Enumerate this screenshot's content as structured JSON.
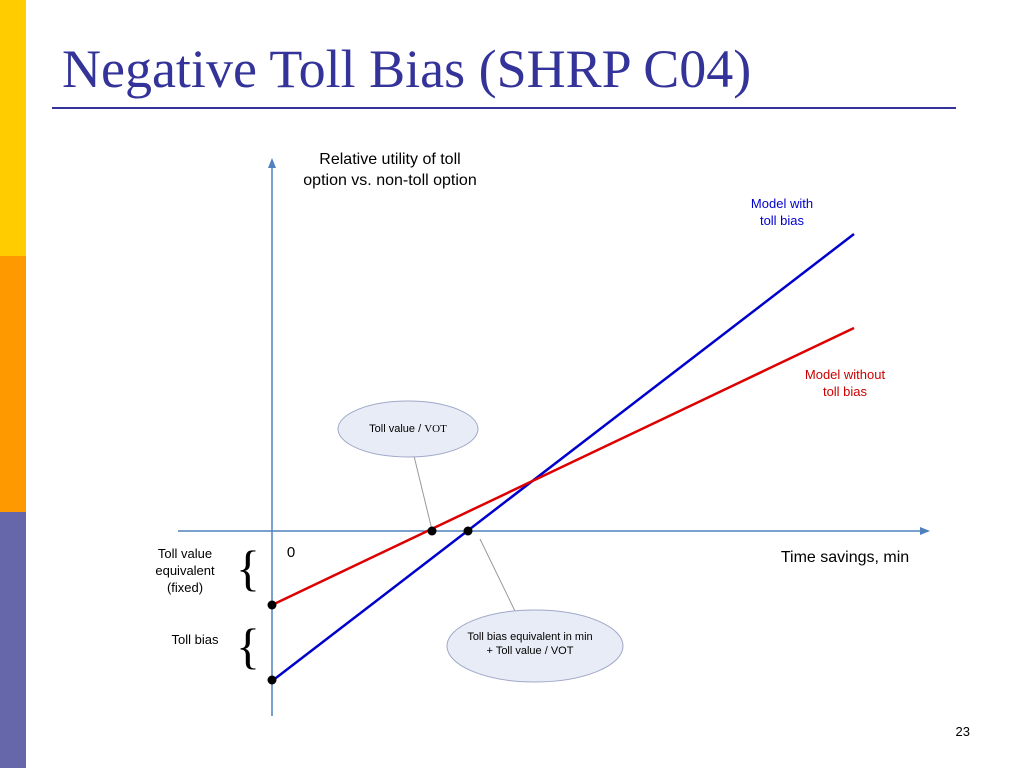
{
  "slide": {
    "title": "Negative Toll Bias (SHRP C04)",
    "page_number": "23"
  },
  "diagram": {
    "y_axis_label": "Relative utility of toll\noption vs. non-toll option",
    "x_axis_label": "Time savings, min",
    "origin_label": "0",
    "line_with_bias_label": "Model with\ntoll bias",
    "line_without_bias_label": "Model without\ntoll bias",
    "toll_value_equivalent_label": "Toll value\nequivalent\n(fixed)",
    "toll_bias_label": "Toll bias",
    "bubble_toll_value_prefix": "Toll value / ",
    "bubble_toll_value_suffix": "VOT",
    "bubble_toll_bias": "Toll bias equivalent in min\n+ Toll value / VOT",
    "colors": {
      "axis": "#4f81bd",
      "with_bias": "#0000cc",
      "without_bias": "#dd0000",
      "bubble_fill": "#e8ecf6",
      "title": "#333399"
    }
  }
}
